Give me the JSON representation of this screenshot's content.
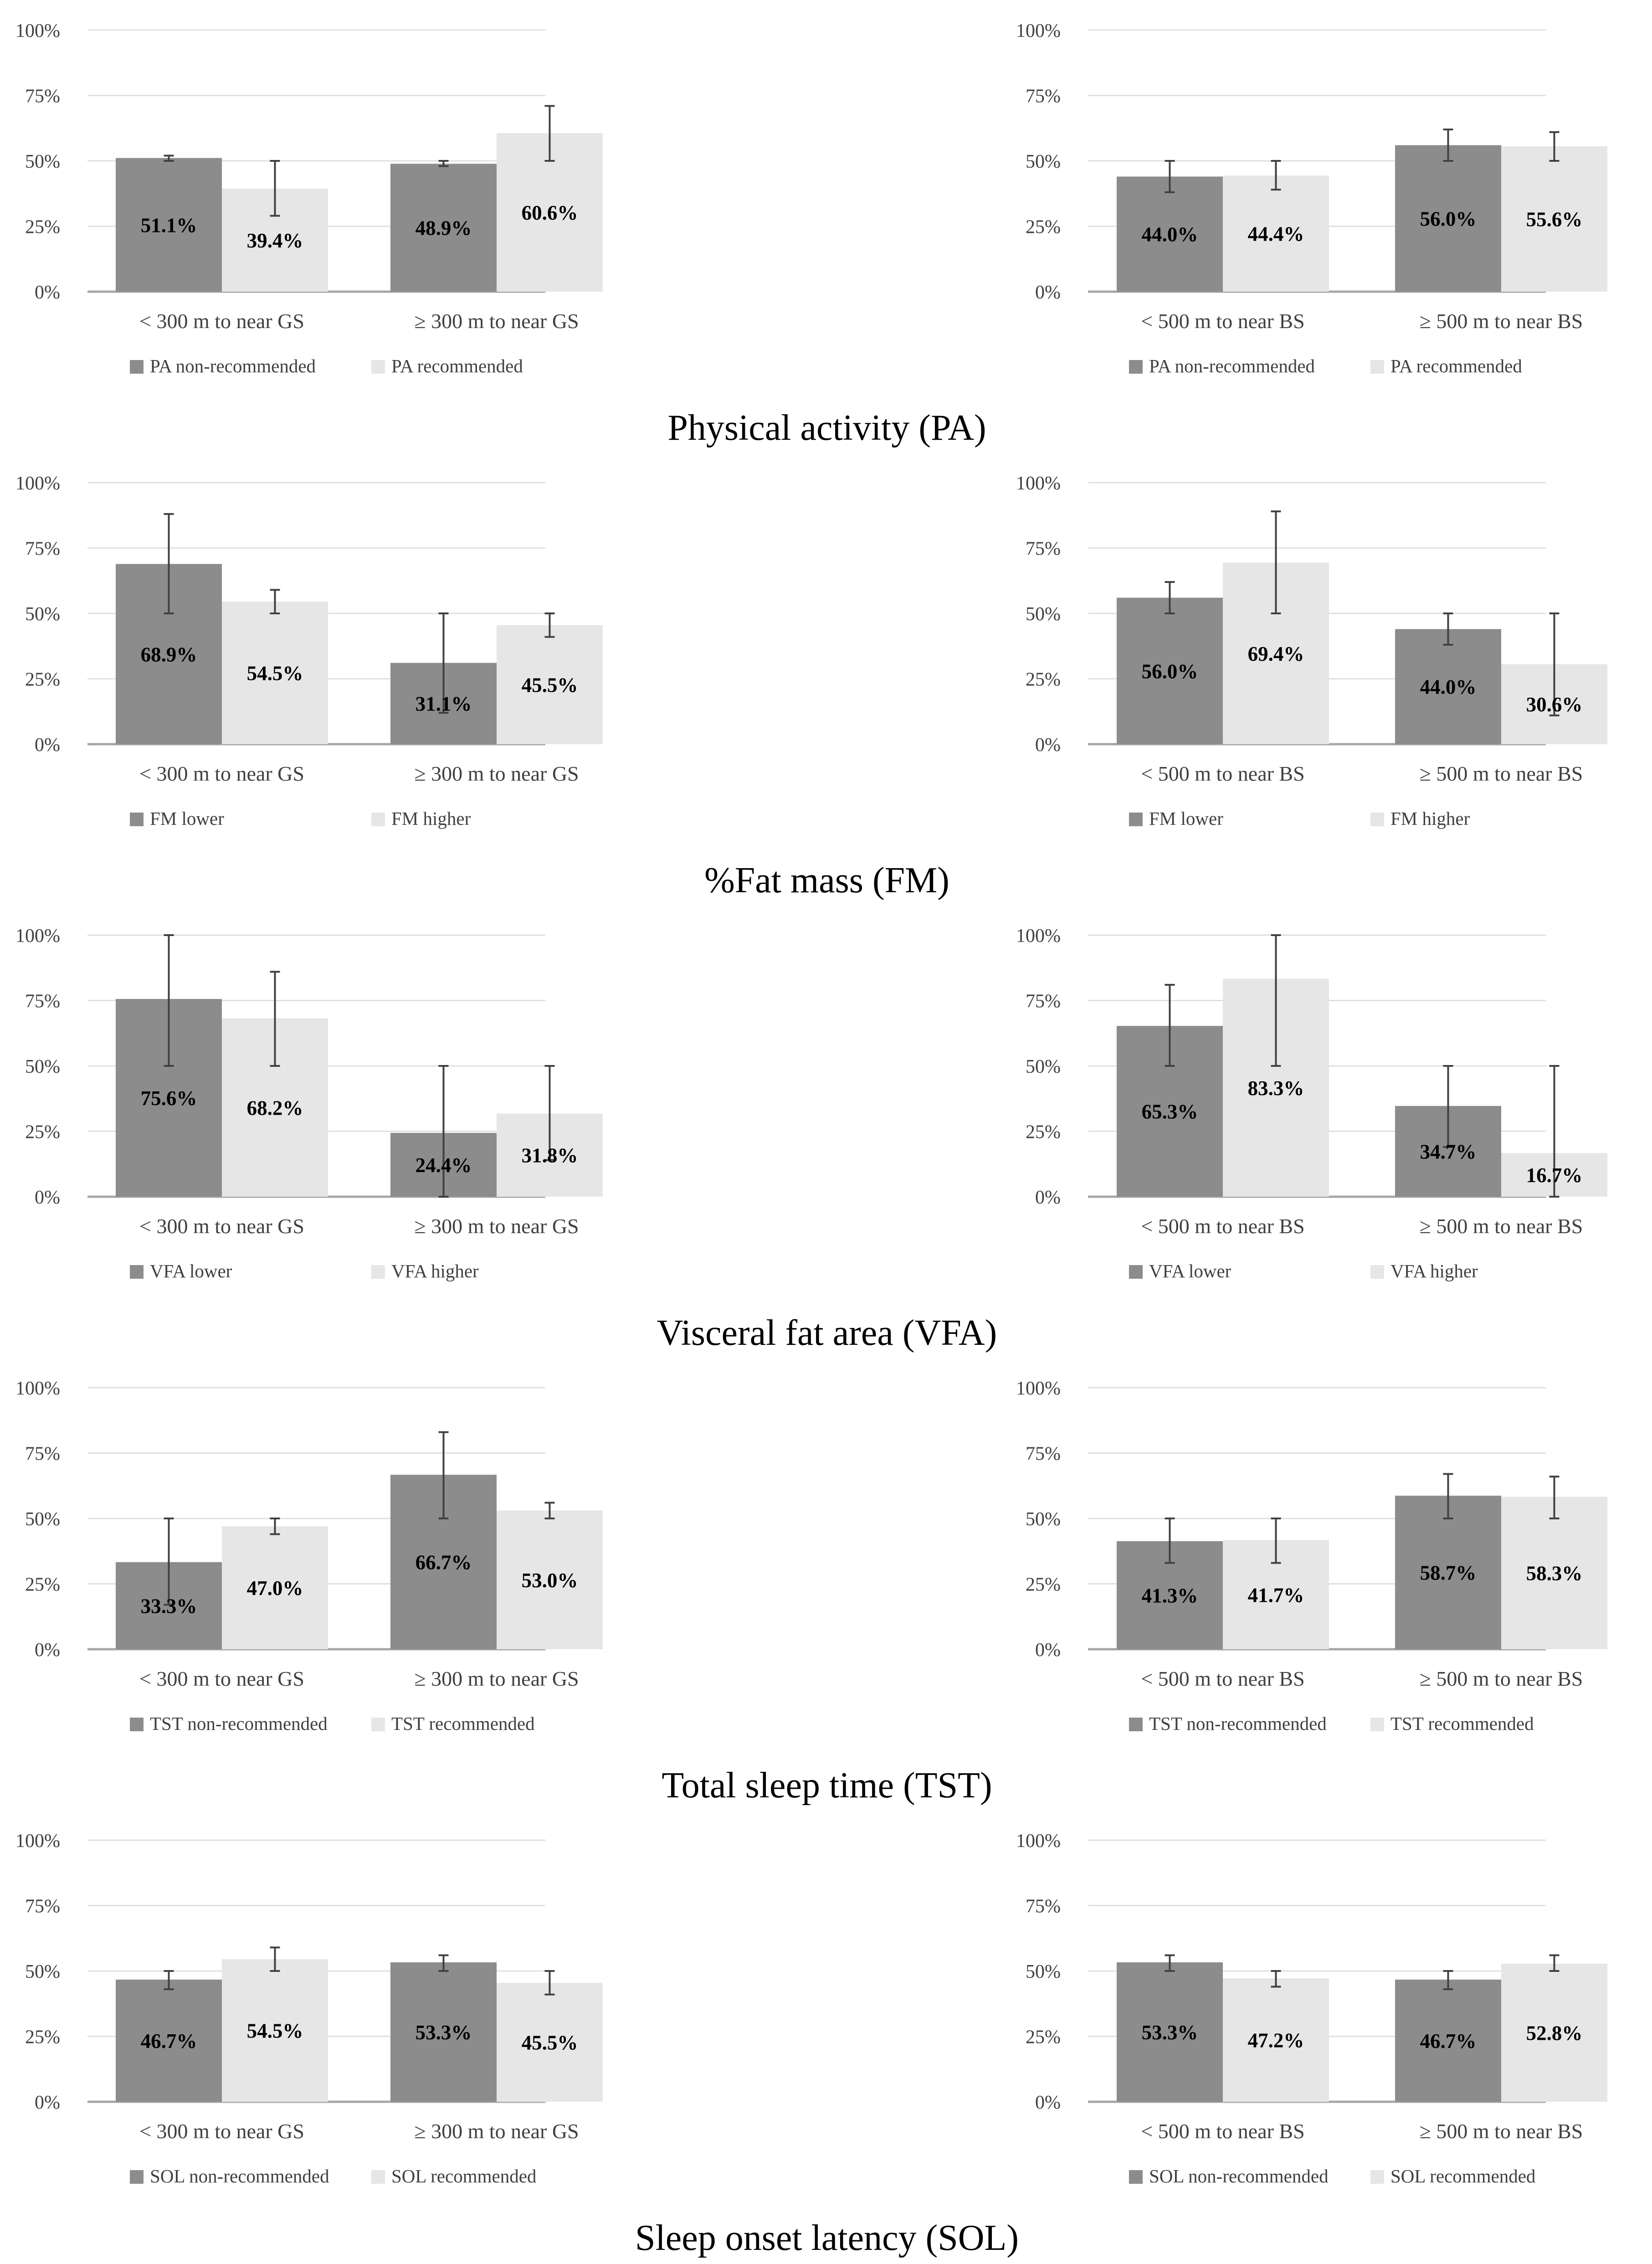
{
  "colors": {
    "series1": "#8c8c8c",
    "series2": "#e6e6e6",
    "grid": "#e0e0e0",
    "axis": "#a6a6a6",
    "error": "#404040"
  },
  "chart_data": [
    {
      "group": "PA",
      "title": "Physical activity (PA)",
      "type": "bar",
      "side": "left",
      "categories": [
        "< 300 m to near GS",
        "≥ 300 m to near GS"
      ],
      "yticks": [
        "0%",
        "25%",
        "50%",
        "75%",
        "100%"
      ],
      "ylim": [
        0,
        100
      ],
      "series": [
        {
          "name": "PA non-recommended",
          "values": [
            51.1,
            48.9
          ],
          "labels": [
            "51.1%",
            "48.9%"
          ],
          "err_low": [
            50,
            48
          ],
          "err_high": [
            52,
            50
          ]
        },
        {
          "name": "PA recommended",
          "values": [
            39.4,
            60.6
          ],
          "labels": [
            "39.4%",
            "60.6%"
          ],
          "err_low": [
            29,
            50
          ],
          "err_high": [
            50,
            71
          ]
        }
      ]
    },
    {
      "group": "PA",
      "type": "bar",
      "side": "right",
      "categories": [
        "< 500 m to near BS",
        "≥ 500 m to near BS"
      ],
      "yticks": [
        "0%",
        "25%",
        "50%",
        "75%",
        "100%"
      ],
      "ylim": [
        0,
        100
      ],
      "series": [
        {
          "name": "PA non-recommended",
          "values": [
            44.0,
            56.0
          ],
          "labels": [
            "44.0%",
            "56.0%"
          ],
          "err_low": [
            38,
            50
          ],
          "err_high": [
            50,
            62
          ]
        },
        {
          "name": "PA recommended",
          "values": [
            44.4,
            55.6
          ],
          "labels": [
            "44.4%",
            "55.6%"
          ],
          "err_low": [
            39,
            50
          ],
          "err_high": [
            50,
            61
          ]
        }
      ]
    },
    {
      "group": "FM",
      "title": "%Fat mass (FM)",
      "type": "bar",
      "side": "left",
      "categories": [
        "< 300 m to near GS",
        "≥ 300 m to near GS"
      ],
      "yticks": [
        "0%",
        "25%",
        "50%",
        "75%",
        "100%"
      ],
      "ylim": [
        0,
        100
      ],
      "series": [
        {
          "name": "FM lower",
          "values": [
            68.9,
            31.1
          ],
          "labels": [
            "68.9%",
            "31.1%"
          ],
          "err_low": [
            50,
            12
          ],
          "err_high": [
            88,
            50
          ]
        },
        {
          "name": "FM higher",
          "values": [
            54.5,
            45.5
          ],
          "labels": [
            "54.5%",
            "45.5%"
          ],
          "err_low": [
            50,
            41
          ],
          "err_high": [
            59,
            50
          ]
        }
      ]
    },
    {
      "group": "FM",
      "type": "bar",
      "side": "right",
      "categories": [
        "< 500 m to near BS",
        "≥ 500 m to near BS"
      ],
      "yticks": [
        "0%",
        "25%",
        "50%",
        "75%",
        "100%"
      ],
      "ylim": [
        0,
        100
      ],
      "series": [
        {
          "name": "FM lower",
          "values": [
            56.0,
            44.0
          ],
          "labels": [
            "56.0%",
            "44.0%"
          ],
          "err_low": [
            50,
            38
          ],
          "err_high": [
            62,
            50
          ]
        },
        {
          "name": "FM higher",
          "values": [
            69.4,
            30.6
          ],
          "labels": [
            "69.4%",
            "30.6%"
          ],
          "err_low": [
            50,
            11
          ],
          "err_high": [
            89,
            50
          ]
        }
      ]
    },
    {
      "group": "VFA",
      "title": "Visceral fat area (VFA)",
      "type": "bar",
      "side": "left",
      "categories": [
        "< 300 m to near GS",
        "≥ 300 m to near GS"
      ],
      "yticks": [
        "0%",
        "25%",
        "50%",
        "75%",
        "100%"
      ],
      "ylim": [
        0,
        100
      ],
      "series": [
        {
          "name": "VFA lower",
          "values": [
            75.6,
            24.4
          ],
          "labels": [
            "75.6%",
            "24.4%"
          ],
          "err_low": [
            50,
            0
          ],
          "err_high": [
            100,
            50
          ]
        },
        {
          "name": "VFA higher",
          "values": [
            68.2,
            31.8
          ],
          "labels": [
            "68.2%",
            "31.8%"
          ],
          "err_low": [
            50,
            14
          ],
          "err_high": [
            86,
            50
          ]
        }
      ]
    },
    {
      "group": "VFA",
      "type": "bar",
      "side": "right",
      "categories": [
        "< 500 m to near BS",
        "≥ 500 m to near BS"
      ],
      "yticks": [
        "0%",
        "25%",
        "50%",
        "75%",
        "100%"
      ],
      "ylim": [
        0,
        100
      ],
      "series": [
        {
          "name": "VFA lower",
          "values": [
            65.3,
            34.7
          ],
          "labels": [
            "65.3%",
            "34.7%"
          ],
          "err_low": [
            50,
            19
          ],
          "err_high": [
            81,
            50
          ]
        },
        {
          "name": "VFA higher",
          "values": [
            83.3,
            16.7
          ],
          "labels": [
            "83.3%",
            "16.7%"
          ],
          "err_low": [
            50,
            0
          ],
          "err_high": [
            100,
            50
          ]
        }
      ]
    },
    {
      "group": "TST",
      "title": "Total sleep time (TST)",
      "type": "bar",
      "side": "left",
      "categories": [
        "< 300 m to near GS",
        "≥ 300 m to near GS"
      ],
      "yticks": [
        "0%",
        "25%",
        "50%",
        "75%",
        "100%"
      ],
      "ylim": [
        0,
        100
      ],
      "series": [
        {
          "name": "TST non-recommended",
          "values": [
            33.3,
            66.7
          ],
          "labels": [
            "33.3%",
            "66.7%"
          ],
          "err_low": [
            17,
            50
          ],
          "err_high": [
            50,
            83
          ]
        },
        {
          "name": "TST recommended",
          "values": [
            47.0,
            53.0
          ],
          "labels": [
            "47.0%",
            "53.0%"
          ],
          "err_low": [
            44,
            50
          ],
          "err_high": [
            50,
            56
          ]
        }
      ]
    },
    {
      "group": "TST",
      "type": "bar",
      "side": "right",
      "categories": [
        "< 500 m to near BS",
        "≥ 500 m to near BS"
      ],
      "yticks": [
        "0%",
        "25%",
        "50%",
        "75%",
        "100%"
      ],
      "ylim": [
        0,
        100
      ],
      "series": [
        {
          "name": "TST non-recommended",
          "values": [
            41.3,
            58.7
          ],
          "labels": [
            "41.3%",
            "58.7%"
          ],
          "err_low": [
            33,
            50
          ],
          "err_high": [
            50,
            67
          ]
        },
        {
          "name": "TST recommended",
          "values": [
            41.7,
            58.3
          ],
          "labels": [
            "41.7%",
            "58.3%"
          ],
          "err_low": [
            33,
            50
          ],
          "err_high": [
            50,
            66
          ]
        }
      ]
    },
    {
      "group": "SOL",
      "title": "Sleep onset latency (SOL)",
      "type": "bar",
      "side": "left",
      "categories": [
        "< 300 m to near GS",
        "≥ 300 m to near GS"
      ],
      "yticks": [
        "0%",
        "25%",
        "50%",
        "75%",
        "100%"
      ],
      "ylim": [
        0,
        100
      ],
      "series": [
        {
          "name": "SOL non-recommended",
          "values": [
            46.7,
            53.3
          ],
          "labels": [
            "46.7%",
            "53.3%"
          ],
          "err_low": [
            43,
            50
          ],
          "err_high": [
            50,
            56
          ]
        },
        {
          "name": "SOL recommended",
          "values": [
            54.5,
            45.5
          ],
          "labels": [
            "54.5%",
            "45.5%"
          ],
          "err_low": [
            50,
            41
          ],
          "err_high": [
            59,
            50
          ]
        }
      ]
    },
    {
      "group": "SOL",
      "type": "bar",
      "side": "right",
      "categories": [
        "< 500 m to near BS",
        "≥ 500 m to near BS"
      ],
      "yticks": [
        "0%",
        "25%",
        "50%",
        "75%",
        "100%"
      ],
      "ylim": [
        0,
        100
      ],
      "series": [
        {
          "name": "SOL non-recommended",
          "values": [
            53.3,
            46.7
          ],
          "labels": [
            "53.3%",
            "46.7%"
          ],
          "err_low": [
            50,
            43
          ],
          "err_high": [
            56,
            50
          ]
        },
        {
          "name": "SOL recommended",
          "values": [
            47.2,
            52.8
          ],
          "labels": [
            "47.2%",
            "52.8%"
          ],
          "err_low": [
            44,
            50
          ],
          "err_high": [
            50,
            56
          ]
        }
      ]
    }
  ]
}
